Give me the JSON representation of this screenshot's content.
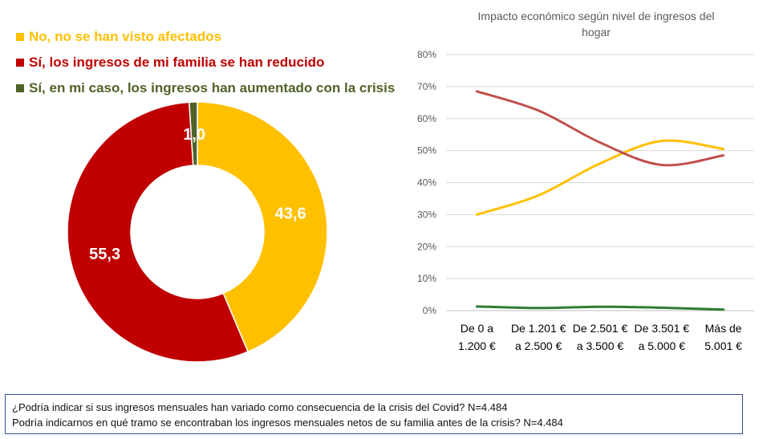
{
  "chart_data": [
    {
      "type": "pie",
      "subtype": "donut",
      "title": "",
      "series": [
        {
          "name": "No, no se han visto afectados",
          "value": 43.6,
          "label": "43,6",
          "color": "#FFC000"
        },
        {
          "name": "Sí, los ingresos de mi familia se han reducido",
          "value": 55.3,
          "label": "55,3",
          "color": "#C00000"
        },
        {
          "name": "Sí, en mi caso, los ingresos han aumentado con la crisis",
          "value": 1.0,
          "label": "1,0",
          "color": "#4F6228"
        }
      ],
      "legend_position": "top-left"
    },
    {
      "type": "line",
      "title": "Impacto económico según nivel de ingresos del hogar",
      "categories": [
        "De 0 a 1.200 €",
        "De 1.201 € a 2.500 €",
        "De 2.501 € a 3.500 €",
        "De 3.501 € a 5.000 €",
        "Más de 5.001 €"
      ],
      "category_lines": [
        [
          "De 0 a",
          "1.200 €"
        ],
        [
          "De 1.201 €",
          "a 2.500 €"
        ],
        [
          "De 2.501 €",
          "a 3.500 €"
        ],
        [
          "De 3.501 €",
          "a 5.000 €"
        ],
        [
          "Más de",
          "5.001 €"
        ]
      ],
      "ylim": [
        0,
        80
      ],
      "yticks": [
        "0%",
        "10%",
        "20%",
        "30%",
        "40%",
        "50%",
        "60%",
        "70%",
        "80%"
      ],
      "series": [
        {
          "color": "#FFC000",
          "values": [
            30,
            36,
            46,
            53,
            50.5
          ]
        },
        {
          "color": "#C0504D",
          "values": [
            68.5,
            62.5,
            52.5,
            45.5,
            48.5
          ]
        },
        {
          "color": "#2E7D32",
          "values": [
            1.3,
            0.8,
            1.2,
            0.9,
            0.3
          ]
        }
      ],
      "grid": true
    }
  ],
  "note": {
    "line1": "¿Podría indicar si sus ingresos mensuales han variado como consecuencia de la crisis del Covid? N=4.484",
    "line2": "Podría indicarnos en qué tramo se encontraban los ingresos mensuales netos de su familia antes de la crisis? N=4.484"
  }
}
